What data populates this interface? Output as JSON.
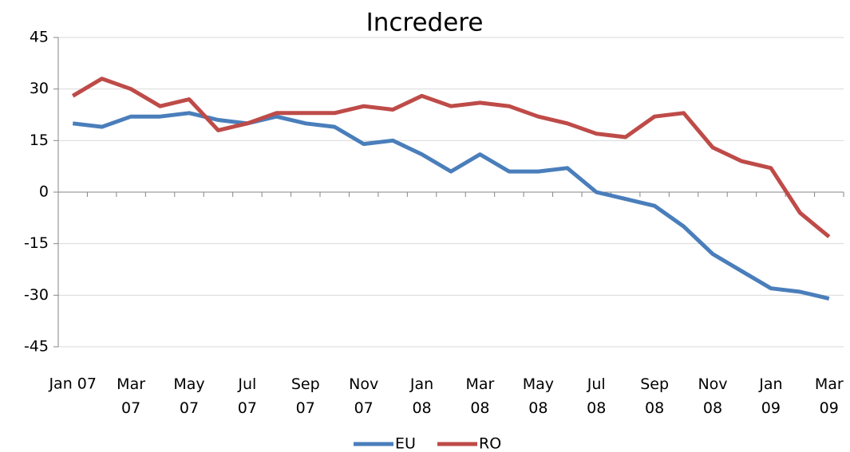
{
  "chart_data": {
    "type": "line",
    "title": "Incredere",
    "categories": [
      "Jan 07",
      null,
      "Mar 07",
      null,
      "May 07",
      null,
      "Jul 07",
      null,
      "Sep 07",
      null,
      "Nov 07",
      null,
      "Jan 08",
      null,
      "Mar 08",
      null,
      "May 08",
      null,
      "Jul 08",
      null,
      "Sep 08",
      null,
      "Nov 08",
      null,
      "Jan 09",
      null,
      "Mar 09"
    ],
    "series": [
      {
        "name": "EU",
        "color": "#4a7ebb",
        "values": [
          20,
          19,
          22,
          22,
          23,
          21,
          20,
          22,
          20,
          19,
          14,
          15,
          11,
          6,
          11,
          6,
          6,
          7,
          0,
          -2,
          -4,
          -10,
          -18,
          -23,
          -28,
          -29,
          -31
        ]
      },
      {
        "name": "RO",
        "color": "#be4b48",
        "values": [
          28,
          33,
          30,
          25,
          27,
          18,
          20,
          23,
          23,
          23,
          25,
          24,
          28,
          25,
          26,
          25,
          22,
          20,
          17,
          16,
          22,
          23,
          13,
          9,
          7,
          -6,
          -13
        ]
      }
    ],
    "ylim": [
      -45,
      45
    ],
    "yticks": [
      -45,
      -30,
      -15,
      0,
      15,
      30,
      45
    ],
    "grid": true,
    "legend": "bottom"
  }
}
